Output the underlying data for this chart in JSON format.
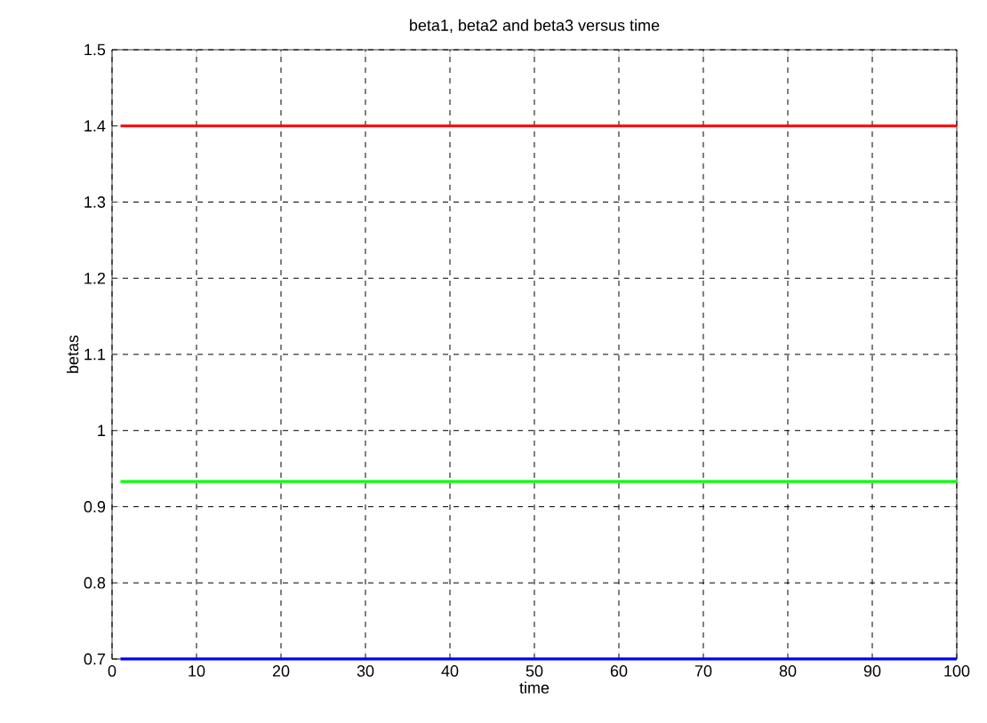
{
  "chart_data": {
    "type": "line",
    "title": "beta1, beta2 and beta3 versus time",
    "xlabel": "time",
    "ylabel": "betas",
    "x": [
      1,
      100
    ],
    "series": [
      {
        "color": "#ff0000",
        "values": [
          1.4,
          1.4
        ]
      },
      {
        "color": "#00ff00",
        "values": [
          0.933,
          0.933
        ]
      },
      {
        "color": "#0000ff",
        "values": [
          0.7,
          0.7
        ]
      }
    ],
    "xlim": [
      0,
      100
    ],
    "xticks": [
      0,
      10,
      20,
      30,
      40,
      50,
      60,
      70,
      80,
      90,
      100
    ],
    "ylim": [
      0.7,
      1.5
    ],
    "yticks": [
      0.7,
      0.8,
      0.9,
      1,
      1.1,
      1.2,
      1.3,
      1.4,
      1.5
    ],
    "grid": true,
    "line_style": "solid",
    "marker": "none"
  }
}
